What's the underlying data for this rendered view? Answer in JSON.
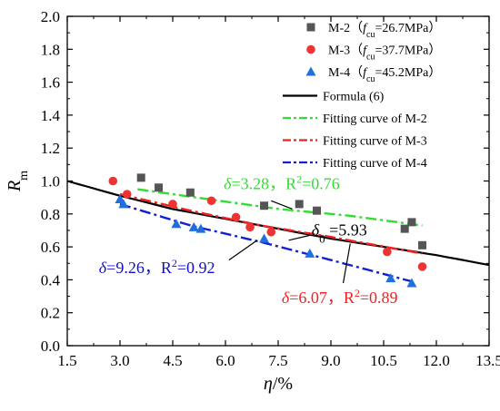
{
  "chart_data": {
    "type": "scatter",
    "xlabel": "η/%",
    "ylabel": "R",
    "ylabel_sub": "m",
    "xlim": [
      1.5,
      13.5
    ],
    "ylim": [
      0.0,
      2.0
    ],
    "xticks": [
      1.5,
      3.0,
      4.5,
      6.0,
      7.5,
      9.0,
      10.5,
      12.0,
      13.5
    ],
    "xtick_labels": [
      "1.5",
      "3.0",
      "4.5",
      "6.0",
      "7.5",
      "9.0",
      "10.5",
      "12.0",
      "13.5"
    ],
    "yticks": [
      0.0,
      0.2,
      0.4,
      0.6,
      0.8,
      1.0,
      1.2,
      1.4,
      1.6,
      1.8,
      2.0
    ],
    "ytick_labels": [
      "0.0",
      "0.2",
      "0.4",
      "0.6",
      "0.8",
      "1.0",
      "1.2",
      "1.4",
      "1.6",
      "1.8",
      "2.0"
    ],
    "grid": false,
    "legend_position": "top-right",
    "series": [
      {
        "name": "M-2",
        "legend_prefix": "M-2（",
        "legend_f": "f",
        "legend_sub": "cu",
        "legend_suffix": "=26.7MPa）",
        "marker": "square",
        "color": "#555555",
        "points": [
          [
            3.6,
            1.02
          ],
          [
            4.1,
            0.96
          ],
          [
            5.0,
            0.93
          ],
          [
            7.1,
            0.85
          ],
          [
            8.1,
            0.86
          ],
          [
            8.6,
            0.82
          ],
          [
            11.1,
            0.71
          ],
          [
            11.3,
            0.75
          ],
          [
            11.6,
            0.61
          ]
        ]
      },
      {
        "name": "M-3",
        "legend_prefix": "M-3（",
        "legend_f": "f",
        "legend_sub": "cu",
        "legend_suffix": "=37.7MPa）",
        "marker": "circle",
        "color": "#ee3333",
        "points": [
          [
            2.8,
            1.0
          ],
          [
            3.2,
            0.92
          ],
          [
            4.5,
            0.86
          ],
          [
            5.6,
            0.88
          ],
          [
            6.3,
            0.78
          ],
          [
            6.7,
            0.72
          ],
          [
            7.3,
            0.69
          ],
          [
            10.6,
            0.57
          ],
          [
            11.6,
            0.48
          ]
        ]
      },
      {
        "name": "M-4",
        "legend_prefix": "M-4（",
        "legend_f": "f",
        "legend_sub": "cu",
        "legend_suffix": "=45.2MPa）",
        "marker": "triangle",
        "color": "#1f6fdd",
        "points": [
          [
            3.0,
            0.89
          ],
          [
            3.1,
            0.86
          ],
          [
            4.6,
            0.74
          ],
          [
            5.1,
            0.72
          ],
          [
            5.3,
            0.71
          ],
          [
            7.1,
            0.65
          ],
          [
            8.4,
            0.56
          ],
          [
            10.7,
            0.41
          ],
          [
            11.3,
            0.38
          ]
        ]
      }
    ],
    "curves": [
      {
        "name": "Formula (6)",
        "style": "solid",
        "color": "#000000",
        "x_range": [
          1.5,
          13.5
        ],
        "y_at_x": [
          [
            1.5,
            1.0
          ],
          [
            3.0,
            0.91
          ],
          [
            4.5,
            0.83
          ],
          [
            6.0,
            0.77
          ],
          [
            7.5,
            0.71
          ],
          [
            9.0,
            0.65
          ],
          [
            10.5,
            0.6
          ],
          [
            12.0,
            0.55
          ],
          [
            13.5,
            0.49
          ]
        ]
      },
      {
        "name": "Fitting curve of M-2",
        "style": "dash-dot",
        "color": "#33dd33",
        "x_range": [
          3.5,
          11.6
        ],
        "y_at_x": [
          [
            3.5,
            0.95
          ],
          [
            5.5,
            0.89
          ],
          [
            7.5,
            0.83
          ],
          [
            9.5,
            0.79
          ],
          [
            11.6,
            0.73
          ]
        ]
      },
      {
        "name": "Fitting curve of M-3",
        "style": "dash-dot",
        "color": "#ee2222",
        "x_range": [
          3.0,
          11.6
        ],
        "y_at_x": [
          [
            3.0,
            0.92
          ],
          [
            5.0,
            0.82
          ],
          [
            7.0,
            0.73
          ],
          [
            9.0,
            0.66
          ],
          [
            11.6,
            0.56
          ]
        ]
      },
      {
        "name": "Fitting curve of M-4",
        "style": "dash-dot",
        "color": "#1122cc",
        "x_range": [
          3.0,
          11.3
        ],
        "y_at_x": [
          [
            3.0,
            0.86
          ],
          [
            5.0,
            0.73
          ],
          [
            7.0,
            0.63
          ],
          [
            9.0,
            0.52
          ],
          [
            11.3,
            0.39
          ]
        ]
      }
    ],
    "annotations": [
      {
        "name": "m2-fit",
        "delta": "δ",
        "sub": "",
        "text": "=3.28，R",
        "sup": "2",
        "tail": "=0.76",
        "color": "#33dd33",
        "x": 5.95,
        "y": 0.95
      },
      {
        "name": "formula",
        "delta": "δ",
        "sub": "0",
        "text": " =5.93",
        "sup": "",
        "tail": "",
        "color": "#000000",
        "x": 8.45,
        "y": 0.67
      },
      {
        "name": "m4-fit",
        "delta": "δ",
        "sub": "",
        "text": "=9.26，R",
        "sup": "2",
        "tail": "=0.92",
        "color": "#1111cc",
        "x": 2.4,
        "y": 0.44
      },
      {
        "name": "m3-fit",
        "delta": "δ",
        "sub": "",
        "text": "=6.07，R",
        "sup": "2",
        "tail": "=0.89",
        "color": "#ee2222",
        "x": 7.6,
        "y": 0.26
      }
    ],
    "leaders": [
      {
        "name": "m2-leader",
        "color": "#000000",
        "from": [
          7.3,
          0.88
        ],
        "to": [
          7.9,
          0.83
        ]
      },
      {
        "name": "formula-leader",
        "color": "#000000",
        "from": [
          7.8,
          0.64
        ],
        "to": [
          8.4,
          0.67
        ]
      },
      {
        "name": "m4-leader",
        "color": "#000000",
        "from": [
          6.1,
          0.52
        ],
        "to": [
          6.9,
          0.64
        ]
      },
      {
        "name": "m3-leader",
        "color": "#000000",
        "from": [
          9.35,
          0.38
        ],
        "to": [
          9.55,
          0.62
        ]
      }
    ]
  }
}
